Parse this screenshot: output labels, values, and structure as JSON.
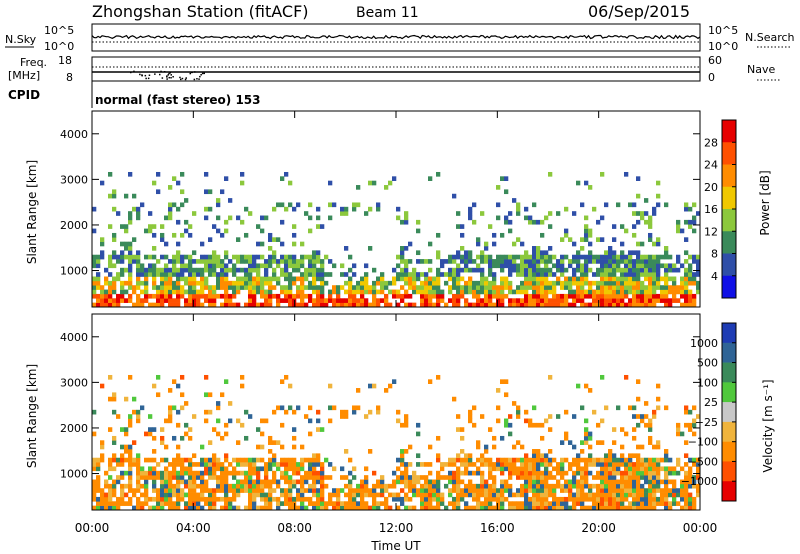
{
  "header": {
    "station": "Zhongshan Station (fitACF)",
    "beam": "Beam 11",
    "date": "06/Sep/2015"
  },
  "panels": {
    "nsky": {
      "label": "N.Sky",
      "left_ticks": [
        "10^5",
        "10^0"
      ],
      "right_ticks": [
        "10^5",
        "10^0"
      ],
      "right_label": "N.Search"
    },
    "freq": {
      "label_line1": "Freq.",
      "label_line2": "[MHz]",
      "left_ticks": [
        "18",
        "8"
      ],
      "right_ticks": [
        "60",
        "0"
      ],
      "right_label": "Nave"
    },
    "cpid": {
      "label": "CPID",
      "text": "normal (fast stereo) 153"
    }
  },
  "colors": {
    "power": [
      "#1010e6",
      "#2f4fa8",
      "#3a8a5a",
      "#8cc83c",
      "#f0c800",
      "#ff8c00",
      "#ff5000",
      "#e60000"
    ],
    "velocity": [
      "#e60000",
      "#ff5000",
      "#ff8c00",
      "#f0b43c",
      "#c8c8c8",
      "#50c83c",
      "#3a8a5a",
      "#2f6496",
      "#1e3cb4"
    ]
  },
  "chart_data": [
    {
      "type": "heatmap",
      "name": "power",
      "ylabel": "Slant Range [km]",
      "yticks": [
        "1000",
        "2000",
        "3000",
        "4000"
      ],
      "ylim": [
        200,
        4500
      ],
      "xlim_hours": [
        0,
        24
      ],
      "colorbar_label": "Power [dB]",
      "colorbar_ticks": [
        "4",
        "8",
        "12",
        "16",
        "20",
        "24",
        "28"
      ],
      "colorbar_range": [
        0,
        32
      ]
    },
    {
      "type": "heatmap",
      "name": "velocity",
      "ylabel": "Slant Range [km]",
      "yticks": [
        "1000",
        "2000",
        "3000",
        "4000"
      ],
      "ylim": [
        200,
        4500
      ],
      "xlim_hours": [
        0,
        24
      ],
      "xticks": [
        "00:00",
        "04:00",
        "08:00",
        "12:00",
        "16:00",
        "20:00",
        "00:00"
      ],
      "xlabel": "Time UT",
      "colorbar_label": "Velocity [m s⁻¹]",
      "colorbar_ticks": [
        "1000",
        "500",
        "100",
        "25",
        "−25",
        "−100",
        "−500",
        "−1000"
      ]
    }
  ]
}
